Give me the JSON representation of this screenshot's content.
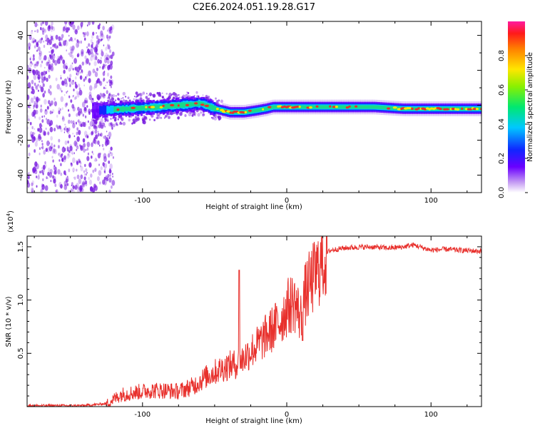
{
  "title": "C2E6.2024.051.19.28.G17",
  "colors": {
    "snr_line": "#e8302c",
    "spec_cloud": "#7a1ee0",
    "spec_ridge": "#e8302c",
    "spec_core": "#19d98a"
  },
  "chart_data": [
    {
      "type": "heatmap",
      "name": "spectrogram",
      "xlabel": "Height of straight line (km)",
      "ylabel": "Frequency (Hz)",
      "xlim": [
        -180,
        135
      ],
      "ylim": [
        -50,
        48
      ],
      "xticks": [
        -100,
        0,
        100
      ],
      "yticks": [
        -40,
        -20,
        0,
        20,
        40
      ],
      "colorbar": {
        "label": "Normalized spectral amplitude",
        "range": [
          0,
          1
        ],
        "ticks": [
          "0.0",
          "0.2",
          "0.4",
          "0.6",
          "0.8"
        ],
        "tick_values": [
          0.0,
          0.2,
          0.4,
          0.6,
          0.8
        ]
      },
      "noise_region_x": [
        -180,
        -120
      ],
      "ridge_frequency": {
        "x": [
          -135,
          -110,
          -90,
          -75,
          -60,
          -50,
          -40,
          -30,
          -22,
          -15,
          -10,
          0,
          10,
          20,
          40,
          60,
          80,
          100,
          120,
          135
        ],
        "y": [
          -3,
          -2,
          -1,
          0,
          1,
          -2,
          -4,
          -4,
          -3,
          -2,
          -1,
          -1,
          -1,
          -1,
          -1,
          -1,
          -2,
          -2,
          -2,
          -2
        ]
      }
    },
    {
      "type": "line",
      "name": "snr",
      "xlabel": "Height of straight line (km)",
      "ylabel": "SNR (10 * v/v)",
      "multiplier_label": "(x10",
      "multiplier_exp": "4",
      "multiplier_close": ")",
      "xlim": [
        -180,
        135
      ],
      "ylim": [
        0,
        1.6
      ],
      "xticks": [
        -100,
        0,
        100
      ],
      "yticks": [
        0.5,
        1.0,
        1.5
      ],
      "ytick_labels": [
        "0.5",
        "1.0",
        "1.5"
      ],
      "series": [
        {
          "x": [
            -180,
            -140,
            -125,
            -115,
            -105,
            -95,
            -85,
            -75,
            -65,
            -55,
            -48,
            -40,
            -33,
            -28,
            -20,
            -12,
            -5,
            0,
            5,
            10,
            12,
            15,
            20,
            25,
            30,
            40,
            50,
            60,
            70,
            80,
            88,
            95,
            100,
            110,
            120,
            135
          ],
          "y": [
            0.01,
            0.01,
            0.03,
            0.12,
            0.14,
            0.16,
            0.16,
            0.15,
            0.2,
            0.3,
            0.35,
            0.4,
            0.42,
            0.5,
            0.6,
            0.72,
            0.82,
            0.95,
            1.02,
            0.85,
            1.05,
            1.15,
            1.28,
            1.4,
            1.47,
            1.49,
            1.5,
            1.5,
            1.49,
            1.5,
            1.52,
            1.49,
            1.47,
            1.48,
            1.47,
            1.46
          ]
        }
      ]
    }
  ]
}
